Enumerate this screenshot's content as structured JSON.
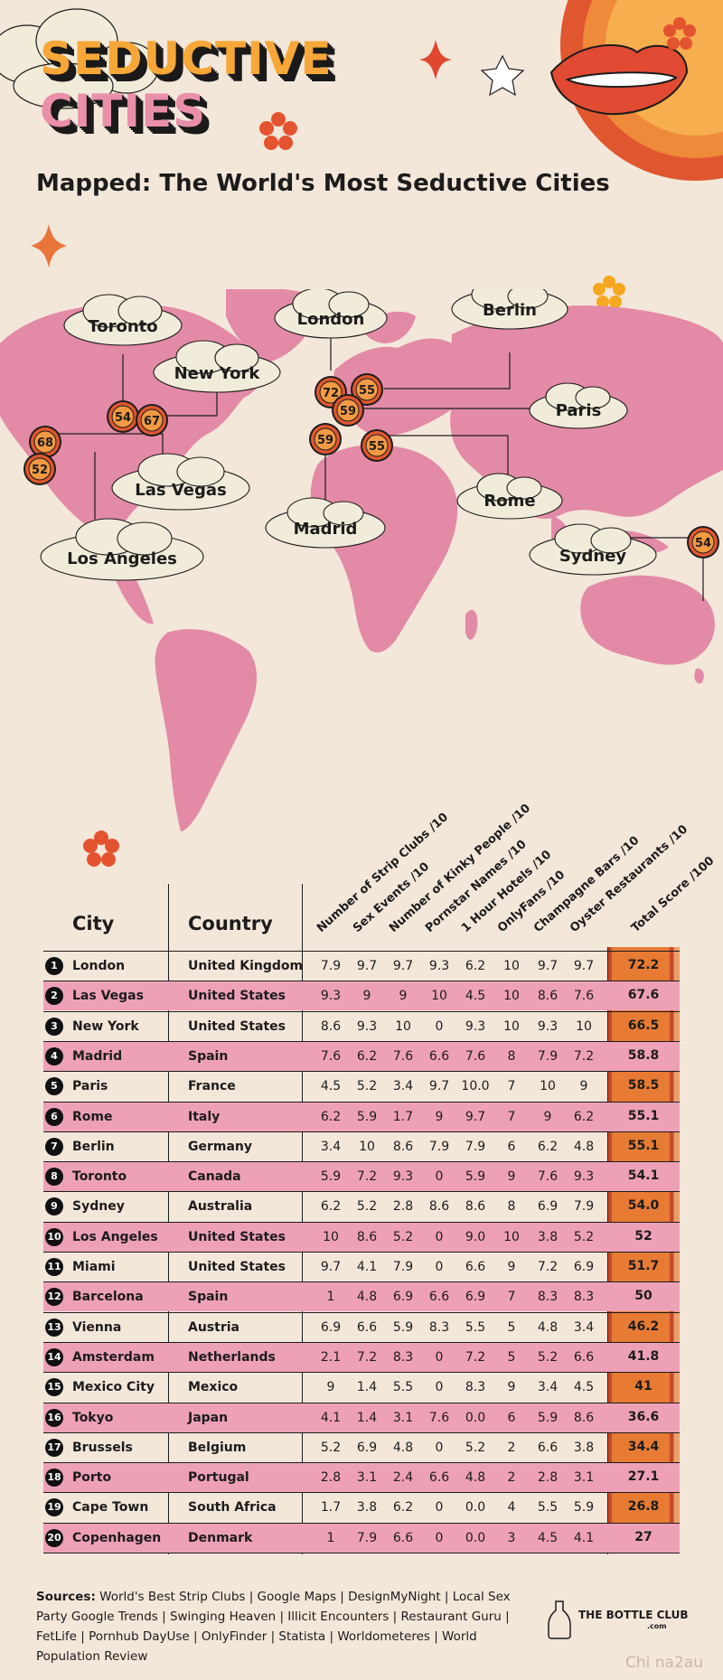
{
  "header": {
    "title_line1": "SEDUCTIVE",
    "title_line2": "CITIES",
    "subtitle": "Mapped: The World's Most Seductive Cities"
  },
  "colors": {
    "background": "#f3e7da",
    "map_land": "#e38aa6",
    "row_pink": "#eea1b6",
    "score_orange": "#e77b34",
    "marker_orange": "#f39a44"
  },
  "map_labels": [
    {
      "city": "Toronto",
      "score": "54"
    },
    {
      "city": "New York",
      "score": "67"
    },
    {
      "city": "Las Vegas",
      "score": "68"
    },
    {
      "city": "Los Angeles",
      "score": "52"
    },
    {
      "city": "London",
      "score": "72"
    },
    {
      "city": "Berlin",
      "score": "55"
    },
    {
      "city": "Paris",
      "score": "59"
    },
    {
      "city": "Madrid",
      "score": "59"
    },
    {
      "city": "Rome",
      "score": "55"
    },
    {
      "city": "Sydney",
      "score": "54"
    }
  ],
  "chart_data": {
    "type": "table",
    "title": "Mapped: The World's Most Seductive Cities",
    "columns": [
      "City",
      "Country",
      "Number of Strip Clubs /10",
      "Sex Events /10",
      "Number of Kinky People /10",
      "Pornstar Names /10",
      "1 Hour Hotels /10",
      "OnlyFans /10",
      "Champagne Bars /10",
      "Oyster Restaurants /10",
      "Total Score /100"
    ],
    "rows": [
      {
        "rank": "1",
        "city": "London",
        "country": "United Kingdom",
        "values": [
          "7.9",
          "9.7",
          "9.7",
          "9.3",
          "6.2",
          "10",
          "9.7",
          "9.7"
        ],
        "total": "72.2"
      },
      {
        "rank": "2",
        "city": "Las Vegas",
        "country": "United States",
        "values": [
          "9.3",
          "9",
          "9",
          "10",
          "4.5",
          "10",
          "8.6",
          "7.6"
        ],
        "total": "67.6"
      },
      {
        "rank": "3",
        "city": "New York",
        "country": "United States",
        "values": [
          "8.6",
          "9.3",
          "10",
          "0",
          "9.3",
          "10",
          "9.3",
          "10"
        ],
        "total": "66.5"
      },
      {
        "rank": "4",
        "city": "Madrid",
        "country": "Spain",
        "values": [
          "7.6",
          "6.2",
          "7.6",
          "6.6",
          "7.6",
          "8",
          "7.9",
          "7.2"
        ],
        "total": "58.8"
      },
      {
        "rank": "5",
        "city": "Paris",
        "country": "France",
        "values": [
          "4.5",
          "5.2",
          "3.4",
          "9.7",
          "10.0",
          "7",
          "10",
          "9"
        ],
        "total": "58.5"
      },
      {
        "rank": "6",
        "city": "Rome",
        "country": "Italy",
        "values": [
          "6.2",
          "5.9",
          "1.7",
          "9",
          "9.7",
          "7",
          "9",
          "6.2"
        ],
        "total": "55.1"
      },
      {
        "rank": "7",
        "city": "Berlin",
        "country": "Germany",
        "values": [
          "3.4",
          "10",
          "8.6",
          "7.9",
          "7.9",
          "6",
          "6.2",
          "4.8"
        ],
        "total": "55.1"
      },
      {
        "rank": "8",
        "city": "Toronto",
        "country": "Canada",
        "values": [
          "5.9",
          "7.2",
          "9.3",
          "0",
          "5.9",
          "9",
          "7.6",
          "9.3"
        ],
        "total": "54.1"
      },
      {
        "rank": "9",
        "city": "Sydney",
        "country": "Australia",
        "values": [
          "6.2",
          "5.2",
          "2.8",
          "8.6",
          "8.6",
          "8",
          "6.9",
          "7.9"
        ],
        "total": "54.0"
      },
      {
        "rank": "10",
        "city": "Los Angeles",
        "country": "United States",
        "values": [
          "10",
          "8.6",
          "5.2",
          "0",
          "9.0",
          "10",
          "3.8",
          "5.2"
        ],
        "total": "52"
      },
      {
        "rank": "11",
        "city": "Miami",
        "country": "United States",
        "values": [
          "9.7",
          "4.1",
          "7.9",
          "0",
          "6.6",
          "9",
          "7.2",
          "6.9"
        ],
        "total": "51.7"
      },
      {
        "rank": "12",
        "city": "Barcelona",
        "country": "Spain",
        "values": [
          "1",
          "4.8",
          "6.9",
          "6.6",
          "6.9",
          "7",
          "8.3",
          "8.3"
        ],
        "total": "50"
      },
      {
        "rank": "13",
        "city": "Vienna",
        "country": "Austria",
        "values": [
          "6.9",
          "6.6",
          "5.9",
          "8.3",
          "5.5",
          "5",
          "4.8",
          "3.4"
        ],
        "total": "46.2"
      },
      {
        "rank": "14",
        "city": "Amsterdam",
        "country": "Netherlands",
        "values": [
          "2.1",
          "7.2",
          "8.3",
          "0",
          "7.2",
          "5",
          "5.2",
          "6.6"
        ],
        "total": "41.8"
      },
      {
        "rank": "15",
        "city": "Mexico City",
        "country": "Mexico",
        "values": [
          "9",
          "1.4",
          "5.5",
          "0",
          "8.3",
          "9",
          "3.4",
          "4.5"
        ],
        "total": "41"
      },
      {
        "rank": "16",
        "city": "Tokyo",
        "country": "Japan",
        "values": [
          "4.1",
          "1.4",
          "3.1",
          "7.6",
          "0.0",
          "6",
          "5.9",
          "8.6"
        ],
        "total": "36.6"
      },
      {
        "rank": "17",
        "city": "Brussels",
        "country": "Belgium",
        "values": [
          "5.2",
          "6.9",
          "4.8",
          "0",
          "5.2",
          "2",
          "6.6",
          "3.8"
        ],
        "total": "34.4"
      },
      {
        "rank": "18",
        "city": "Porto",
        "country": "Portugal",
        "values": [
          "2.8",
          "3.1",
          "2.4",
          "6.6",
          "4.8",
          "2",
          "2.8",
          "3.1"
        ],
        "total": "27.1"
      },
      {
        "rank": "19",
        "city": "Cape Town",
        "country": "South Africa",
        "values": [
          "1.7",
          "3.8",
          "6.2",
          "0",
          "0.0",
          "4",
          "5.5",
          "5.9"
        ],
        "total": "26.8"
      },
      {
        "rank": "20",
        "city": "Copenhagen",
        "country": "Denmark",
        "values": [
          "1",
          "7.9",
          "6.6",
          "0",
          "0.0",
          "3",
          "4.5",
          "4.1"
        ],
        "total": "27"
      }
    ]
  },
  "footer": {
    "sources_label": "Sources:",
    "sources_text": "World's Best Strip Clubs | Google Maps | DesignMyNight | Local Sex Party Google Trends | Swinging Heaven | Illicit Encounters | Restaurant Guru | FetLife | Pornhub DayUse | OnlyFinder | Statista | Worldometeres | World Population Review",
    "brand": "THE BOTTLE CLUB",
    "brand_sub": ".com",
    "watermark": "Chi na2au"
  }
}
